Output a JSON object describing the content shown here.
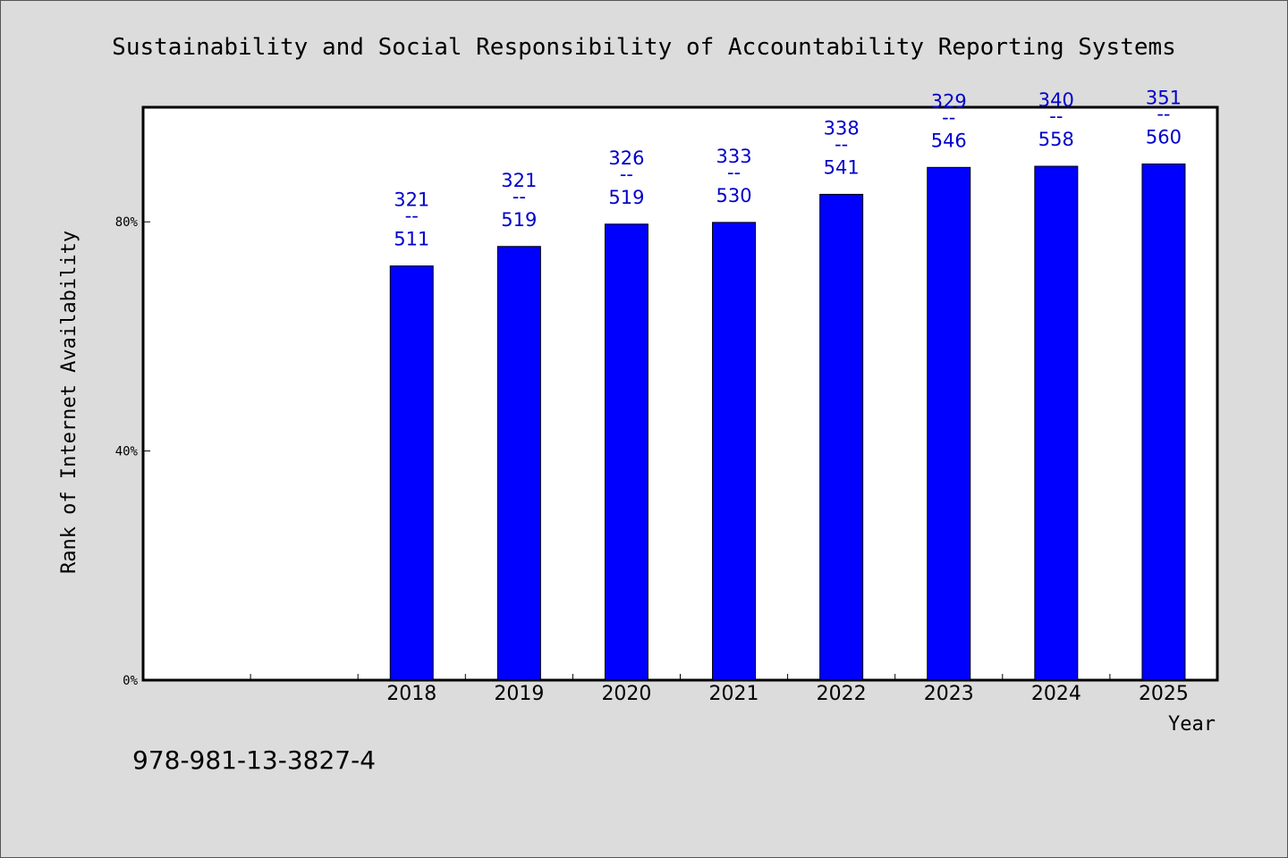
{
  "chart_data": {
    "type": "bar",
    "title": "Sustainability and Social Responsibility of Accountability Reporting Systems",
    "xlabel": "Year",
    "ylabel": "Rank of Internet Availability",
    "y_ticks": [
      "0%",
      "40%",
      "80%"
    ],
    "ylim": [
      0,
      100
    ],
    "categories": [
      "2018",
      "2019",
      "2020",
      "2021",
      "2022",
      "2023",
      "2024",
      "2025"
    ],
    "empty_slots_before": 2,
    "values": [
      72.3,
      75.7,
      79.6,
      79.9,
      84.8,
      89.5,
      89.7,
      90.1
    ],
    "labels": [
      {
        "top": "321",
        "sep": "--",
        "bottom": "511"
      },
      {
        "top": "321",
        "sep": "--",
        "bottom": "519"
      },
      {
        "top": "326",
        "sep": "--",
        "bottom": "519"
      },
      {
        "top": "333",
        "sep": "--",
        "bottom": "530"
      },
      {
        "top": "338",
        "sep": "--",
        "bottom": "541"
      },
      {
        "top": "329",
        "sep": "--",
        "bottom": "546"
      },
      {
        "top": "340",
        "sep": "--",
        "bottom": "558"
      },
      {
        "top": "351",
        "sep": "--",
        "bottom": "560"
      }
    ],
    "bar_color": "#0000ff",
    "label_color": "#0000cc",
    "grid": false
  },
  "footer": {
    "isbn": "978-981-13-3827-4"
  }
}
